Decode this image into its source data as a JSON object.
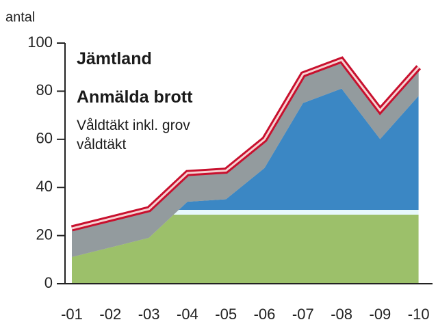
{
  "chart_data": {
    "type": "line",
    "title": "Jämtland",
    "subtitle": "Anmälda brott",
    "description": "Våldtäkt inkl. grov våldtäkt",
    "y_label": "antal",
    "categories": [
      "-01",
      "-02",
      "-03",
      "-04",
      "-05",
      "-06",
      "-07",
      "-08",
      "-09",
      "-10"
    ],
    "values": [
      23,
      27,
      31,
      46,
      47,
      60,
      87,
      93,
      72,
      90
    ],
    "color": "#c8102e",
    "ylim": [
      0,
      100
    ],
    "yticks": [
      0,
      20,
      40,
      60,
      80,
      100
    ]
  }
}
